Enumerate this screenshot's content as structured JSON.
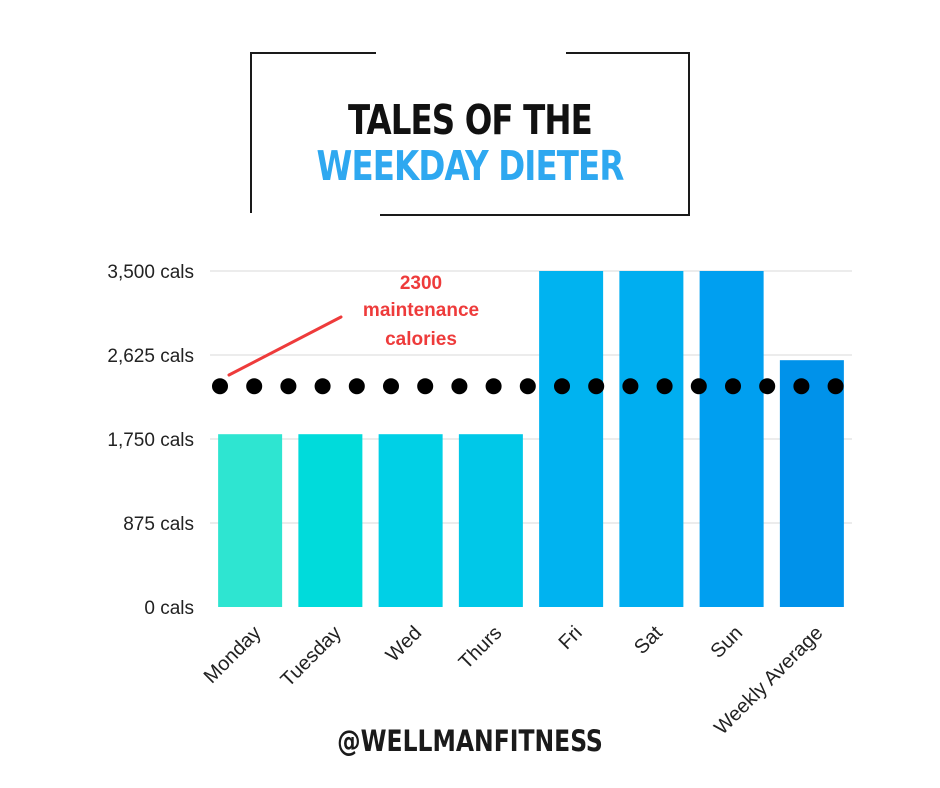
{
  "title": {
    "line1": "TALES OF THE",
    "line2": "WEEKDAY DIETER"
  },
  "footer": {
    "handle": "@WELLMANFITNESS"
  },
  "chart_data": {
    "type": "bar",
    "categories": [
      "Monday",
      "Tuesday",
      "Wed",
      "Thurs",
      "Fri",
      "Sat",
      "Sun",
      "Weekly Average"
    ],
    "values": [
      1800,
      1800,
      1800,
      1800,
      3500,
      3500,
      3500,
      2571
    ],
    "colors": [
      "#2ee5d1",
      "#00dbdb",
      "#00d0e6",
      "#00c8e8",
      "#00b3f0",
      "#00aef0",
      "#009ff0",
      "#0092ea"
    ],
    "y_ticks": [
      {
        "value": 0,
        "label": "0 cals"
      },
      {
        "value": 875,
        "label": "875 cals"
      },
      {
        "value": 1750,
        "label": "1,750 cals"
      },
      {
        "value": 2625,
        "label": "2,625 cals"
      },
      {
        "value": 3500,
        "label": "3,500 cals"
      }
    ],
    "ylim": [
      0,
      3500
    ],
    "grid": true,
    "reference_line": {
      "value": 2300,
      "style": "dotted",
      "color": "#000000",
      "annotation": [
        "2300",
        "maintenance",
        "calories"
      ],
      "annotation_color": "#ee3b3b"
    },
    "xlabel": "",
    "ylabel": ""
  }
}
